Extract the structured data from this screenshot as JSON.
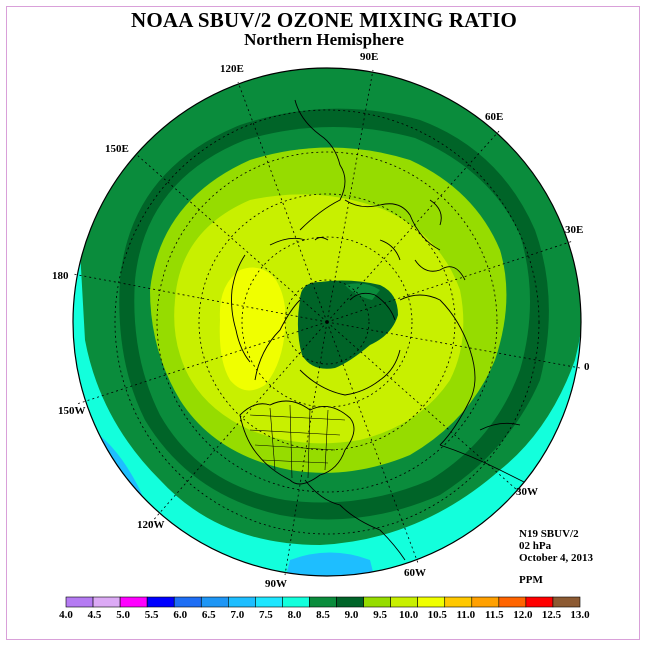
{
  "header": {
    "title": "NOAA SBUV/2 OZONE MIXING RATIO",
    "subtitle": "Northern Hemisphere"
  },
  "longitude_labels": [
    "90E",
    "60E",
    "30E",
    "0",
    "30W",
    "60W",
    "90W",
    "120W",
    "150W",
    "180",
    "150E",
    "120E"
  ],
  "info": {
    "instrument": "N19 SBUV/2",
    "level": "02 hPa",
    "date": "October 4, 2013",
    "unit": "PPM"
  },
  "colorbar": {
    "labels": [
      "4.0",
      "4.5",
      "5.0",
      "5.5",
      "6.0",
      "6.5",
      "7.0",
      "7.5",
      "8.0",
      "8.5",
      "9.0",
      "9.5",
      "10.0",
      "10.5",
      "11.0",
      "11.5",
      "12.0",
      "12.5",
      "13.0"
    ],
    "colors": [
      "#b57bf2",
      "#dcaaf5",
      "#ff00ff",
      "#0000ff",
      "#1e6ef5",
      "#1e96f5",
      "#1ebeff",
      "#1ee6ff",
      "#13ffdc",
      "#0a8c3c",
      "#006428",
      "#96dc00",
      "#c8f000",
      "#f0ff00",
      "#ffc800",
      "#ffa000",
      "#ff6400",
      "#ff0000",
      "#8c5a32"
    ]
  },
  "map_colors": {
    "ocean_ring": "#13ffdc",
    "blue_patch": "#1ebeff",
    "dark_green": "#0a8c3c",
    "darker_green": "#006428",
    "light_green": "#96dc00",
    "yellow_green": "#c8f000",
    "yellow": "#f0ff00",
    "pole_dark": "#006428"
  }
}
